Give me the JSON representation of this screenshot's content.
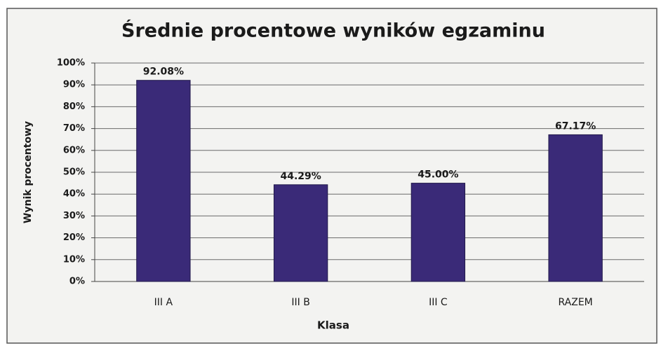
{
  "chart_data": {
    "type": "bar",
    "title": "Średnie procentowe wyników egzaminu",
    "x_label": "Klasa",
    "y_label": "Wynik procentowy",
    "categories": [
      "III A",
      "III B",
      "III C",
      "RAZEM"
    ],
    "values": [
      92.08,
      44.29,
      45.0,
      67.17
    ],
    "value_labels": [
      "92.08%",
      "44.29%",
      "45.00%",
      "67.17%"
    ],
    "color": "#3a2a78",
    "ylim": [
      0,
      100
    ],
    "yticks": [
      {
        "value": 0,
        "label": "0%"
      },
      {
        "value": 10,
        "label": "10%"
      },
      {
        "value": 20,
        "label": "20%"
      },
      {
        "value": 30,
        "label": "30%"
      },
      {
        "value": 40,
        "label": "40%"
      },
      {
        "value": 50,
        "label": "50%"
      },
      {
        "value": 60,
        "label": "60%"
      },
      {
        "value": 70,
        "label": "70%"
      },
      {
        "value": 80,
        "label": "80%"
      },
      {
        "value": 90,
        "label": "90%"
      },
      {
        "value": 100,
        "label": "100%"
      }
    ],
    "grid": true
  }
}
